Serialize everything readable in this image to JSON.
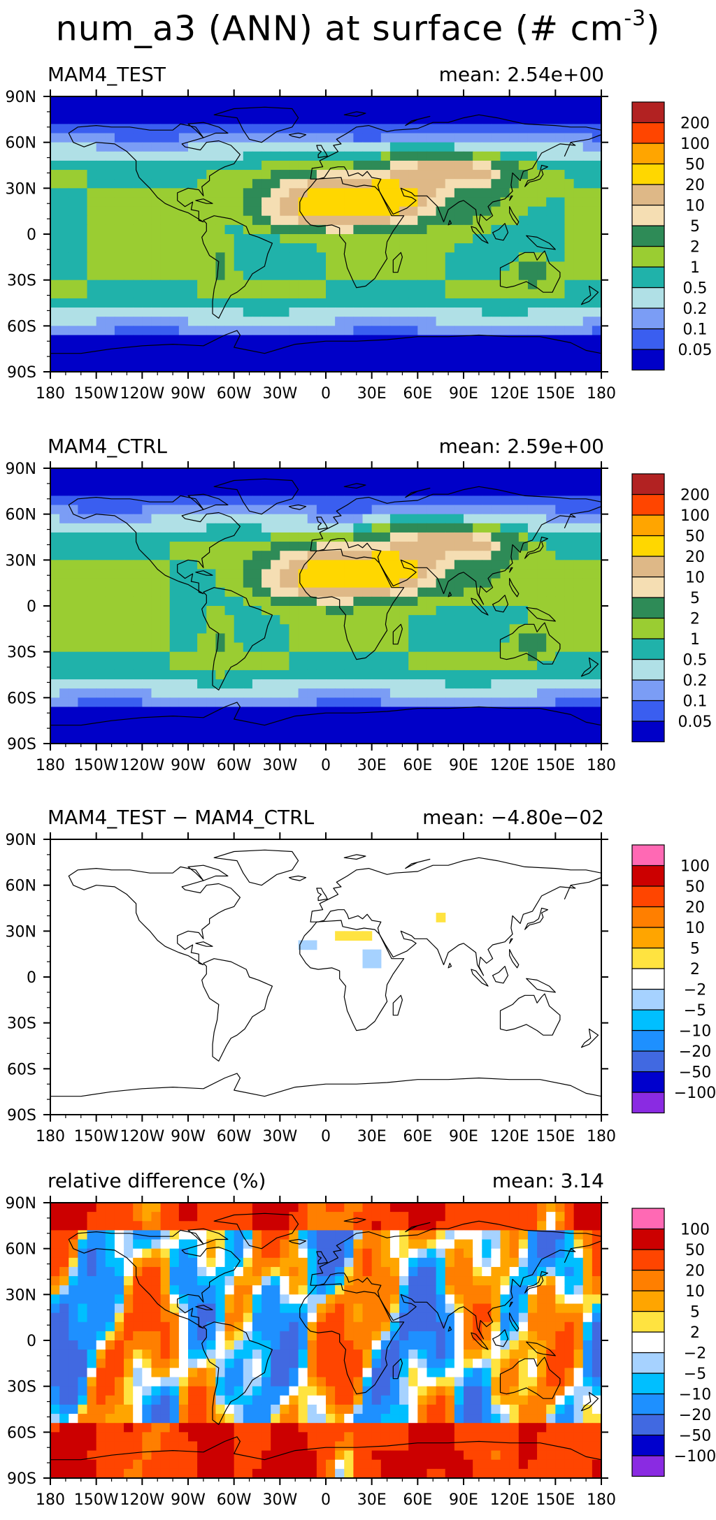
{
  "title": {
    "prefix": "num_a3 (ANN) at surface (# cm",
    "exponent": "-3",
    "suffix": ")"
  },
  "colors": {
    "abs": [
      "#0000c8",
      "#3a5ef0",
      "#7b9df5",
      "#b0e0e6",
      "#20b2aa",
      "#9acd32",
      "#2e8b57",
      "#f5deb3",
      "#deb887",
      "#ffd700",
      "#ffa500",
      "#ff4500",
      "#b22222"
    ],
    "diff": [
      "#8a2be2",
      "#0000cd",
      "#4169e1",
      "#1e90ff",
      "#00bfff",
      "#a6d2ff",
      "#ffffff",
      "#ffe340",
      "#ffa500",
      "#ff7f00",
      "#ff4500",
      "#cc0000",
      "#ff69b4"
    ]
  },
  "chart_data": [
    {
      "type": "heatmap",
      "title": "MAM4_TEST",
      "mean_label": "mean:",
      "mean_value": "2.54e+00",
      "x_ticks": [
        "180",
        "150W",
        "120W",
        "90W",
        "60W",
        "30W",
        "0",
        "30E",
        "60E",
        "90E",
        "120E",
        "150E",
        "180"
      ],
      "y_ticks": [
        "90N",
        "60N",
        "30N",
        "0",
        "30S",
        "60S",
        "90S"
      ],
      "xlim": [
        -180,
        180
      ],
      "ylim": [
        -90,
        90
      ],
      "colorbar_levels": [
        "0.05",
        "0.1",
        "0.2",
        "0.5",
        "1",
        "2",
        "5",
        "10",
        "20",
        "50",
        "100",
        "200"
      ],
      "palette": "abs"
    },
    {
      "type": "heatmap",
      "title": "MAM4_CTRL",
      "mean_label": "mean:",
      "mean_value": "2.59e+00",
      "x_ticks": [
        "180",
        "150W",
        "120W",
        "90W",
        "60W",
        "30W",
        "0",
        "30E",
        "60E",
        "90E",
        "120E",
        "150E",
        "180"
      ],
      "y_ticks": [
        "90N",
        "60N",
        "30N",
        "0",
        "30S",
        "60S",
        "90S"
      ],
      "xlim": [
        -180,
        180
      ],
      "ylim": [
        -90,
        90
      ],
      "colorbar_levels": [
        "0.05",
        "0.1",
        "0.2",
        "0.5",
        "1",
        "2",
        "5",
        "10",
        "20",
        "50",
        "100",
        "200"
      ],
      "palette": "abs"
    },
    {
      "type": "heatmap",
      "title": "MAM4_TEST − MAM4_CTRL",
      "mean_label": "mean:",
      "mean_value": "−4.80e−02",
      "x_ticks": [
        "180",
        "150W",
        "120W",
        "90W",
        "60W",
        "30W",
        "0",
        "30E",
        "60E",
        "90E",
        "120E",
        "150E",
        "180"
      ],
      "y_ticks": [
        "90N",
        "60N",
        "30N",
        "0",
        "30S",
        "60S",
        "90S"
      ],
      "xlim": [
        -180,
        180
      ],
      "ylim": [
        -90,
        90
      ],
      "colorbar_levels": [
        "−100",
        "−50",
        "−20",
        "−10",
        "−5",
        "−2",
        "2",
        "5",
        "10",
        "20",
        "50",
        "100"
      ],
      "palette": "diff"
    },
    {
      "type": "heatmap",
      "title": "relative difference (%)",
      "mean_label": "mean:",
      "mean_value": "3.14",
      "x_ticks": [
        "180",
        "150W",
        "120W",
        "90W",
        "60W",
        "30W",
        "0",
        "30E",
        "60E",
        "90E",
        "120E",
        "150E",
        "180"
      ],
      "y_ticks": [
        "90N",
        "60N",
        "30N",
        "0",
        "30S",
        "60S",
        "90S"
      ],
      "xlim": [
        -180,
        180
      ],
      "ylim": [
        -90,
        90
      ],
      "colorbar_levels": [
        "−100",
        "−50",
        "−20",
        "−10",
        "−5",
        "−2",
        "2",
        "5",
        "10",
        "20",
        "50",
        "100"
      ],
      "palette": "diff"
    }
  ]
}
